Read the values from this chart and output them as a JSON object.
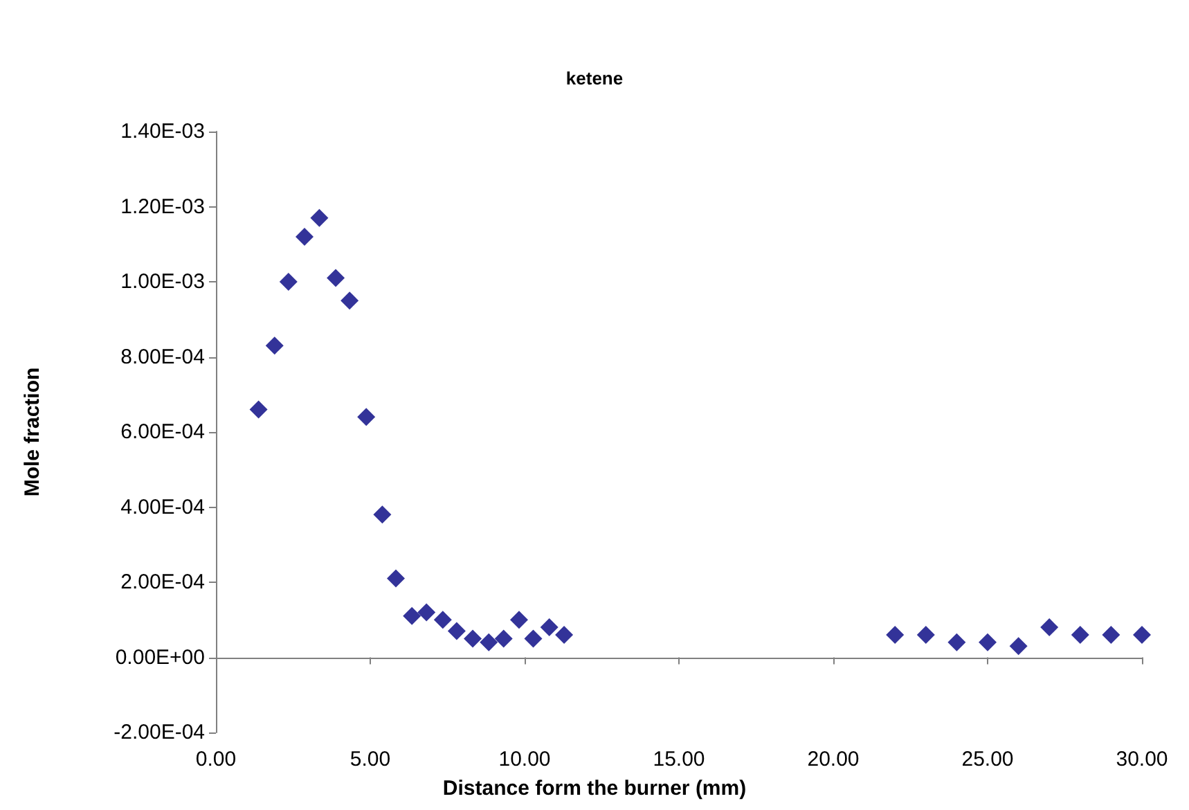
{
  "chart_data": {
    "type": "scatter",
    "title": "ketene",
    "xlabel": "Distance form the burner (mm)",
    "ylabel": "Mole fraction",
    "x": [
      1.38,
      1.9,
      2.35,
      2.87,
      3.35,
      3.88,
      4.33,
      4.87,
      5.39,
      5.83,
      6.35,
      6.82,
      7.35,
      7.8,
      8.32,
      8.84,
      9.32,
      9.82,
      10.28,
      10.8,
      11.28,
      22.0,
      23.0,
      24.0,
      25.0,
      26.0,
      27.0,
      28.0,
      29.0,
      30.0
    ],
    "series": [
      {
        "color": "#000080",
        "values": [
          0.00066,
          0.00083,
          0.001,
          0.00112,
          0.00117,
          0.00101,
          0.00095,
          0.00064,
          0.00038,
          0.00021,
          0.00011,
          0.00012,
          0.0001,
          7e-05,
          5e-05,
          4e-05,
          5e-05,
          0.0001,
          5e-05,
          8e-05,
          6e-05,
          6e-05,
          6e-05,
          4e-05,
          4e-05,
          3e-05,
          8e-05,
          6e-05,
          6e-05,
          6e-05
        ]
      }
    ],
    "xlim": [
      0,
      30
    ],
    "xticks": [
      {
        "value": 0,
        "label": "0.00"
      },
      {
        "value": 5,
        "label": "5.00"
      },
      {
        "value": 10,
        "label": "10.00"
      },
      {
        "value": 15,
        "label": "15.00"
      },
      {
        "value": 20,
        "label": "20.00"
      },
      {
        "value": 25,
        "label": "25.00"
      },
      {
        "value": 30,
        "label": "30.00"
      }
    ],
    "ylim": [
      -0.0002,
      0.0014
    ],
    "yticks": [
      {
        "value": -0.0002,
        "label": "-2.00E-04"
      },
      {
        "value": 0,
        "label": "0.00E+00"
      },
      {
        "value": 0.0002,
        "label": "2.00E-04"
      },
      {
        "value": 0.0004,
        "label": "4.00E-04"
      },
      {
        "value": 0.0006,
        "label": "6.00E-04"
      },
      {
        "value": 0.0008,
        "label": "8.00E-04"
      },
      {
        "value": 0.001,
        "label": "1.00E-03"
      },
      {
        "value": 0.0012,
        "label": "1.20E-03"
      },
      {
        "value": 0.0014,
        "label": "1.40E-03"
      }
    ],
    "marker": "diamond"
  }
}
